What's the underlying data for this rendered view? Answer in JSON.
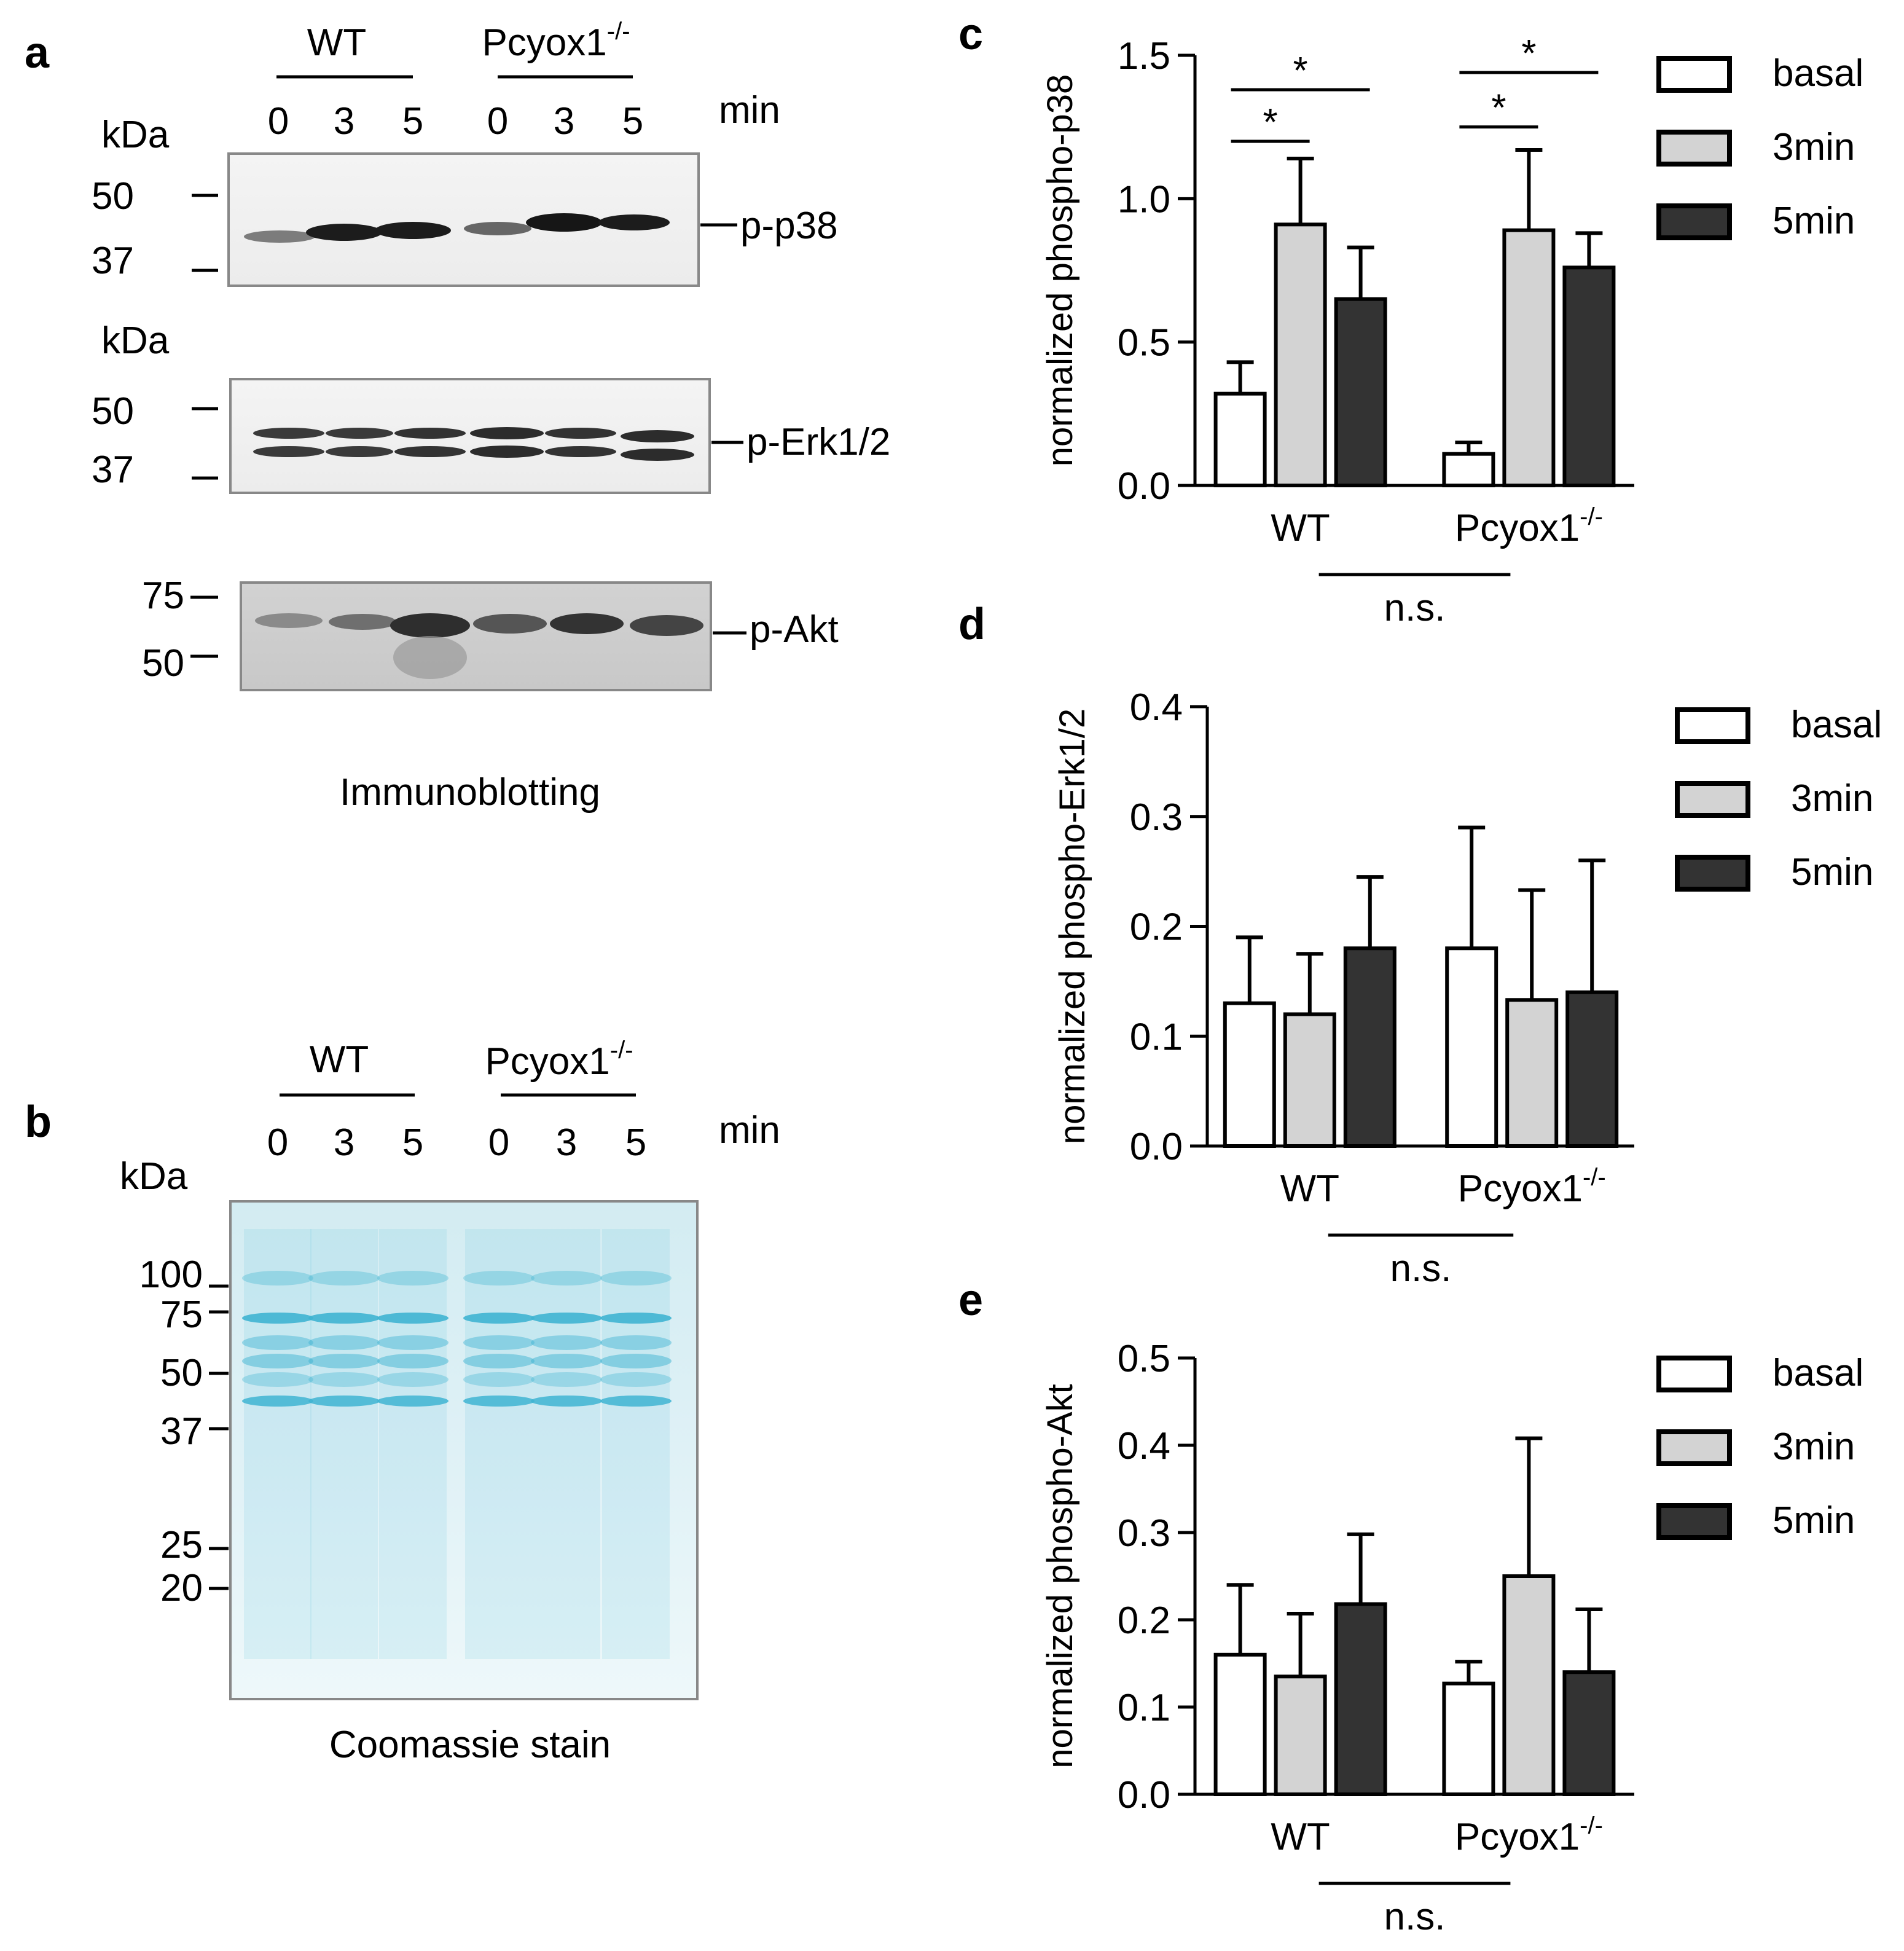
{
  "panel_a": {
    "letter": "a",
    "group_labels": [
      "WT",
      "Pcyox1"
    ],
    "superscript": "-/-",
    "lanes": [
      "0",
      "3",
      "5",
      "0",
      "3",
      "5"
    ],
    "time_unit": "min",
    "kda_label": "kDa",
    "blots": [
      {
        "name": "p-p38",
        "markers": [
          "50",
          "37"
        ]
      },
      {
        "name": "p-Erk1/2",
        "markers": [
          "50",
          "37"
        ]
      },
      {
        "name": "p-Akt",
        "markers": [
          "75",
          "50"
        ]
      }
    ],
    "caption": "Immunoblotting"
  },
  "panel_b": {
    "letter": "b",
    "group_labels": [
      "WT",
      "Pcyox1"
    ],
    "superscript": "-/-",
    "lanes": [
      "0",
      "3",
      "5",
      "0",
      "3",
      "5"
    ],
    "time_unit": "min",
    "kda_label": "kDa",
    "markers": [
      "100",
      "75",
      "50",
      "37",
      "25",
      "20"
    ],
    "caption": "Coomassie stain",
    "stain_color": "#3fb4d2"
  },
  "chart_data": [
    {
      "panel": "c",
      "type": "bar",
      "ylabel": "normalized phospho-p38",
      "ylim": [
        0,
        1.5
      ],
      "yticks": [
        "0.0",
        "0.5",
        "1.0",
        "1.5"
      ],
      "categories": [
        "WT",
        "Pcyox1"
      ],
      "category_superscript": "-/-",
      "series": [
        {
          "name": "basal",
          "color": "#ffffff",
          "values": [
            0.32,
            0.11
          ],
          "errors": [
            0.11,
            0.04
          ]
        },
        {
          "name": "3min",
          "color": "#d3d3d3",
          "values": [
            0.91,
            0.89
          ],
          "errors": [
            0.23,
            0.28
          ]
        },
        {
          "name": "5min",
          "color": "#333333",
          "values": [
            0.65,
            0.76
          ],
          "errors": [
            0.18,
            0.12
          ]
        }
      ],
      "significance": [
        {
          "label": "*",
          "category": 0,
          "from": 0,
          "to": 1,
          "y": 1.2
        },
        {
          "label": "*",
          "category": 0,
          "from": 0,
          "to": 2,
          "y": 1.38
        },
        {
          "label": "*",
          "category": 1,
          "from": 0,
          "to": 1,
          "y": 1.25
        },
        {
          "label": "*",
          "category": 1,
          "from": 0,
          "to": 2,
          "y": 1.44
        }
      ],
      "comparison_label": "n.s."
    },
    {
      "panel": "d",
      "type": "bar",
      "ylabel": "normalized phospho-Erk1/2",
      "ylim": [
        0,
        0.4
      ],
      "yticks": [
        "0.0",
        "0.1",
        "0.2",
        "0.3",
        "0.4"
      ],
      "categories": [
        "WT",
        "Pcyox1"
      ],
      "category_superscript": "-/-",
      "series": [
        {
          "name": "basal",
          "color": "#ffffff",
          "values": [
            0.13,
            0.18
          ],
          "errors": [
            0.06,
            0.11
          ]
        },
        {
          "name": "3min",
          "color": "#d3d3d3",
          "values": [
            0.12,
            0.133
          ],
          "errors": [
            0.055,
            0.1
          ]
        },
        {
          "name": "5min",
          "color": "#333333",
          "values": [
            0.18,
            0.14
          ],
          "errors": [
            0.065,
            0.12
          ]
        }
      ],
      "significance": [],
      "comparison_label": "n.s."
    },
    {
      "panel": "e",
      "type": "bar",
      "ylabel": "normalized phospho-Akt",
      "ylim": [
        0,
        0.5
      ],
      "yticks": [
        "0.0",
        "0.1",
        "0.2",
        "0.3",
        "0.4",
        "0.5"
      ],
      "categories": [
        "WT",
        "Pcyox1"
      ],
      "category_superscript": "-/-",
      "series": [
        {
          "name": "basal",
          "color": "#ffffff",
          "values": [
            0.16,
            0.127
          ],
          "errors": [
            0.08,
            0.025
          ]
        },
        {
          "name": "3min",
          "color": "#d3d3d3",
          "values": [
            0.135,
            0.25
          ],
          "errors": [
            0.072,
            0.158
          ]
        },
        {
          "name": "5min",
          "color": "#333333",
          "values": [
            0.218,
            0.14
          ],
          "errors": [
            0.08,
            0.072
          ]
        }
      ],
      "significance": [],
      "comparison_label": "n.s."
    }
  ]
}
